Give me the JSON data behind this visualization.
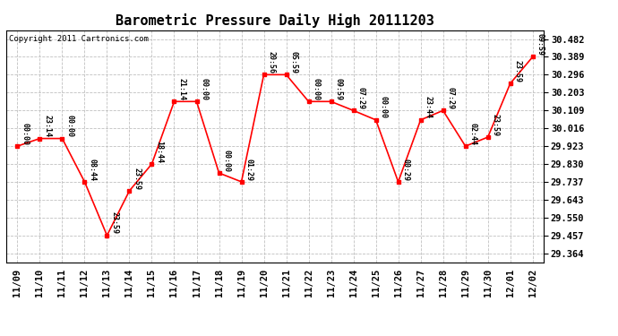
{
  "title": "Barometric Pressure Daily High 20111203",
  "copyright": "Copyright 2011 Cartronics.com",
  "background_color": "#ffffff",
  "line_color": "#ff0000",
  "marker_color": "#ff0000",
  "grid_color": "#c0c0c0",
  "text_color": "#000000",
  "points": [
    {
      "x": 0,
      "date": "11/09",
      "time": "00:00",
      "value": 29.923
    },
    {
      "x": 1,
      "date": "11/10",
      "time": "23:14",
      "value": 29.963
    },
    {
      "x": 2,
      "date": "11/11",
      "time": "00:00",
      "value": 29.963
    },
    {
      "x": 3,
      "date": "11/12",
      "time": "08:44",
      "value": 29.737
    },
    {
      "x": 4,
      "date": "11/13",
      "time": "23:59",
      "value": 29.457
    },
    {
      "x": 5,
      "date": "11/14",
      "time": "23:59",
      "value": 29.69
    },
    {
      "x": 6,
      "date": "11/15",
      "time": "18:44",
      "value": 29.83
    },
    {
      "x": 7,
      "date": "11/16",
      "time": "21:14",
      "value": 30.156
    },
    {
      "x": 8,
      "date": "11/17",
      "time": "00:00",
      "value": 30.156
    },
    {
      "x": 9,
      "date": "11/18",
      "time": "00:00",
      "value": 29.783
    },
    {
      "x": 10,
      "date": "11/19",
      "time": "01:29",
      "value": 29.737
    },
    {
      "x": 11,
      "date": "11/20",
      "time": "20:56",
      "value": 30.296
    },
    {
      "x": 12,
      "date": "11/21",
      "time": "05:59",
      "value": 30.296
    },
    {
      "x": 13,
      "date": "11/22",
      "time": "00:00",
      "value": 30.156
    },
    {
      "x": 14,
      "date": "11/23",
      "time": "09:59",
      "value": 30.156
    },
    {
      "x": 15,
      "date": "11/24",
      "time": "07:29",
      "value": 30.109
    },
    {
      "x": 16,
      "date": "11/25",
      "time": "00:00",
      "value": 30.06
    },
    {
      "x": 17,
      "date": "11/26",
      "time": "00:29",
      "value": 29.737
    },
    {
      "x": 18,
      "date": "11/27",
      "time": "23:44",
      "value": 30.06
    },
    {
      "x": 19,
      "date": "11/28",
      "time": "07:29",
      "value": 30.109
    },
    {
      "x": 20,
      "date": "11/29",
      "time": "02:44",
      "value": 29.923
    },
    {
      "x": 21,
      "date": "11/30",
      "time": "23:59",
      "value": 29.97
    },
    {
      "x": 22,
      "date": "12/01",
      "time": "23:59",
      "value": 30.25
    },
    {
      "x": 23,
      "date": "12/02",
      "time": "09:59",
      "value": 30.389
    }
  ],
  "yticks": [
    29.364,
    29.457,
    29.55,
    29.643,
    29.737,
    29.83,
    29.923,
    30.016,
    30.109,
    30.203,
    30.296,
    30.389,
    30.482
  ],
  "ylim": [
    29.318,
    30.528
  ],
  "xlabel_fontsize": 7.5,
  "ylabel_fontsize": 7.5,
  "title_fontsize": 11,
  "annotation_fontsize": 6.0
}
